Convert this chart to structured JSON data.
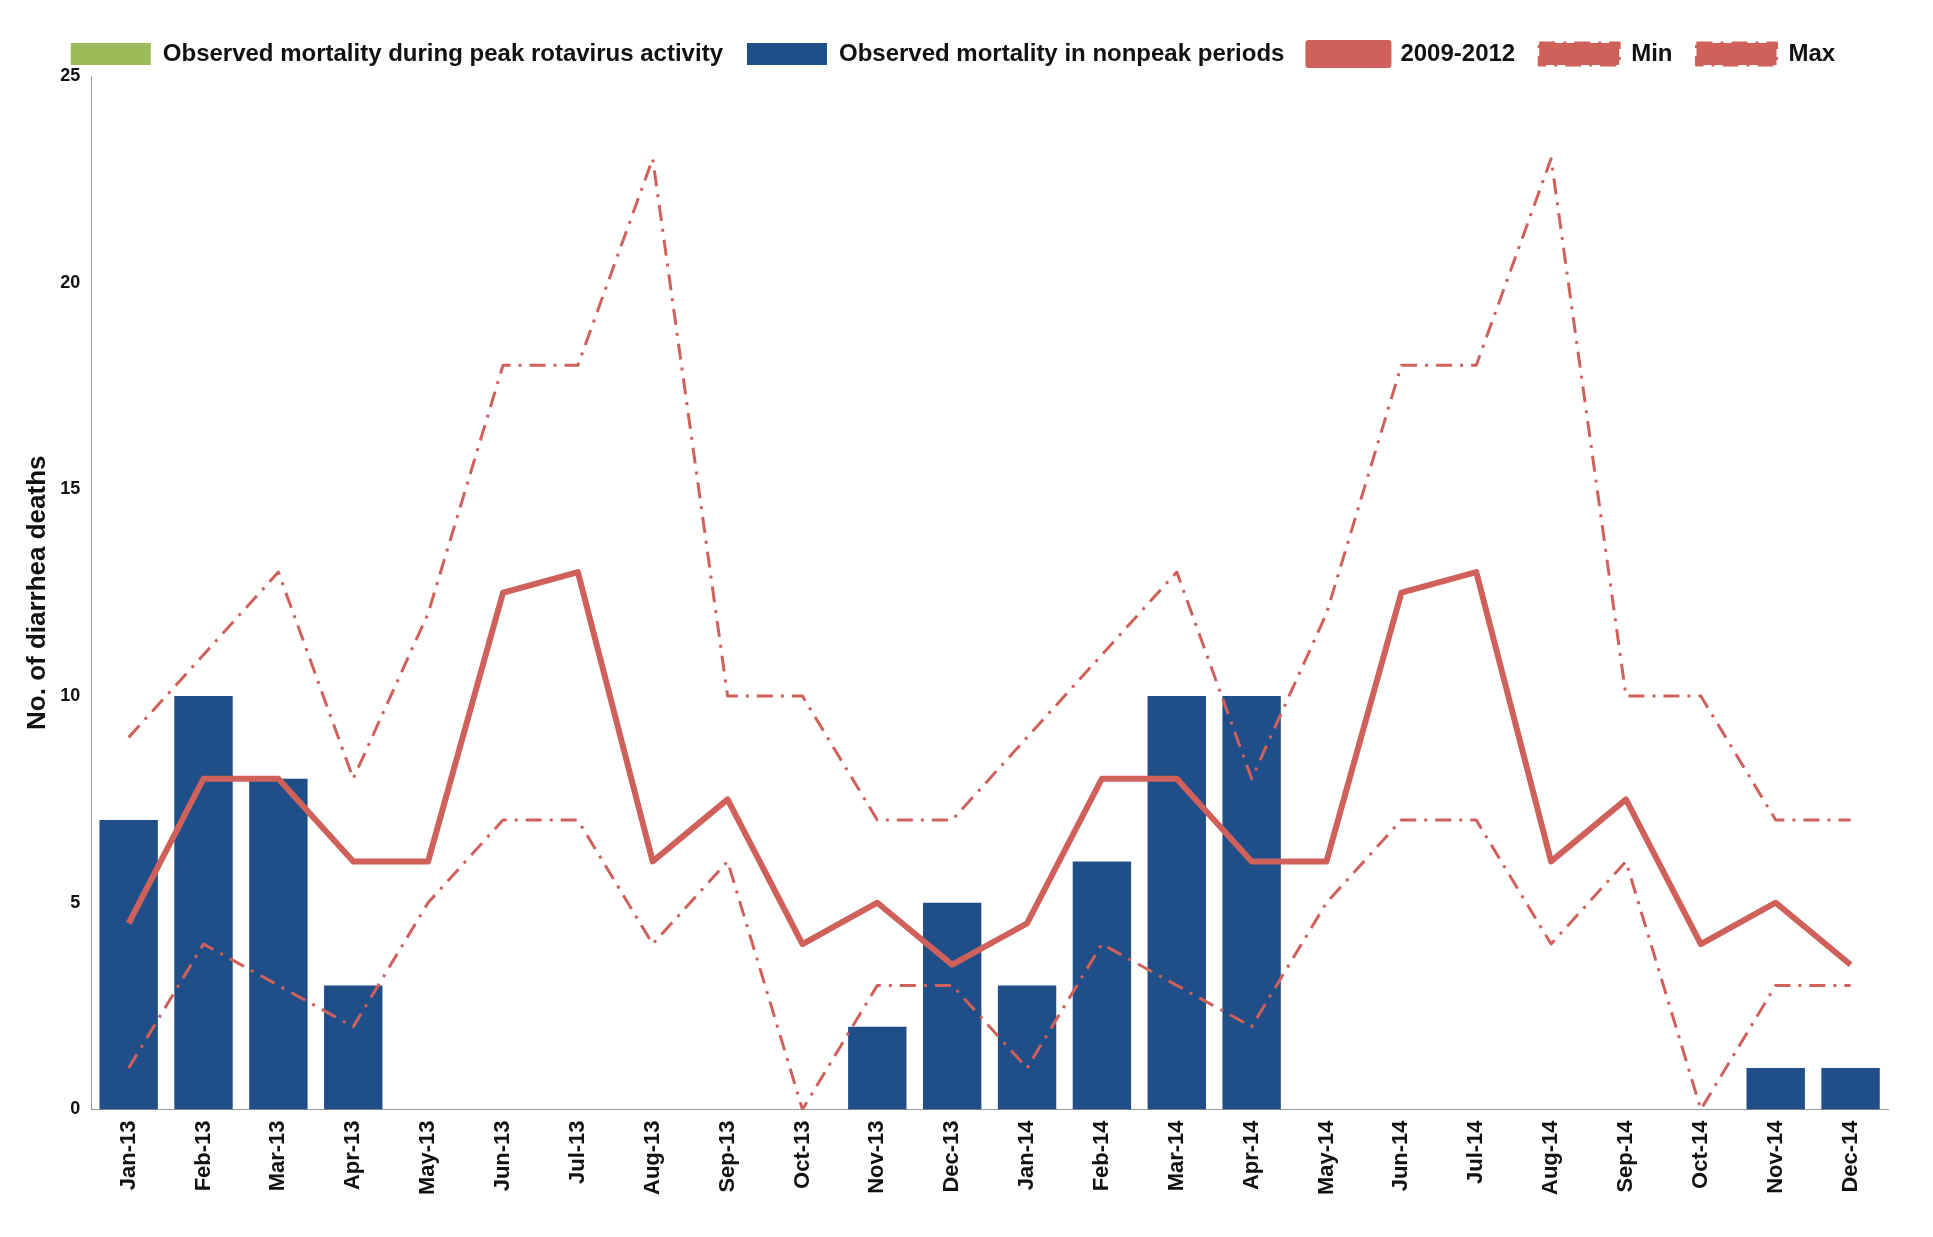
{
  "chart_data": {
    "type": "bar",
    "ylabel": "No. of diarrhea deaths",
    "categories": [
      "Jan-13",
      "Feb-13",
      "Mar-13",
      "Apr-13",
      "May-13",
      "Jun-13",
      "Jul-13",
      "Aug-13",
      "Sep-13",
      "Oct-13",
      "Nov-13",
      "Dec-13",
      "Jan-14",
      "Feb-14",
      "Mar-14",
      "Apr-14",
      "May-14",
      "Jun-14",
      "Jul-14",
      "Aug-14",
      "Sep-14",
      "Oct-14",
      "Nov-14",
      "Dec-14"
    ],
    "series": [
      {
        "name": "Observed mortality during peak rotavirus activity",
        "color": "#9bbb59",
        "values": [
          null,
          null,
          null,
          null,
          null,
          null,
          null,
          null,
          null,
          null,
          null,
          null,
          null,
          null,
          null,
          null,
          null,
          null,
          null,
          null,
          null,
          null,
          null,
          null
        ]
      },
      {
        "name": "Observed mortality in nonpeak periods",
        "color": "#1f4e89",
        "values": [
          7,
          10,
          8,
          3,
          null,
          null,
          null,
          null,
          null,
          null,
          2,
          5,
          3,
          6,
          10,
          10,
          null,
          null,
          null,
          null,
          null,
          null,
          1,
          1
        ]
      },
      {
        "name": "2009-2012",
        "type": "line",
        "color": "#d0605a",
        "line_style": "solid",
        "values": [
          4.5,
          8,
          8,
          6,
          6,
          12.5,
          13,
          6,
          7.5,
          4,
          5,
          3.5,
          4.5,
          8,
          8,
          6,
          6,
          12.5,
          13,
          6,
          7.5,
          4,
          5,
          3.5
        ]
      },
      {
        "name": "Min",
        "type": "line",
        "color": "#d0605a",
        "line_style": "dashed",
        "values": [
          1,
          4,
          3,
          2,
          5,
          7,
          7,
          4,
          6,
          0,
          3,
          3,
          1,
          4,
          3,
          2,
          5,
          7,
          7,
          4,
          6,
          0,
          3,
          3
        ]
      },
      {
        "name": "Max",
        "type": "line",
        "color": "#d0605a",
        "line_style": "dashed",
        "values": [
          9,
          11,
          13,
          8,
          12,
          18,
          18,
          23,
          10,
          10,
          7,
          7,
          9,
          11,
          13,
          8,
          12,
          18,
          18,
          23,
          10,
          10,
          7,
          7
        ]
      }
    ],
    "ylim": [
      0,
      25
    ],
    "yticks": [
      0,
      5,
      10,
      15,
      20,
      25
    ],
    "grid": false,
    "legend": "top",
    "marker": "none"
  }
}
